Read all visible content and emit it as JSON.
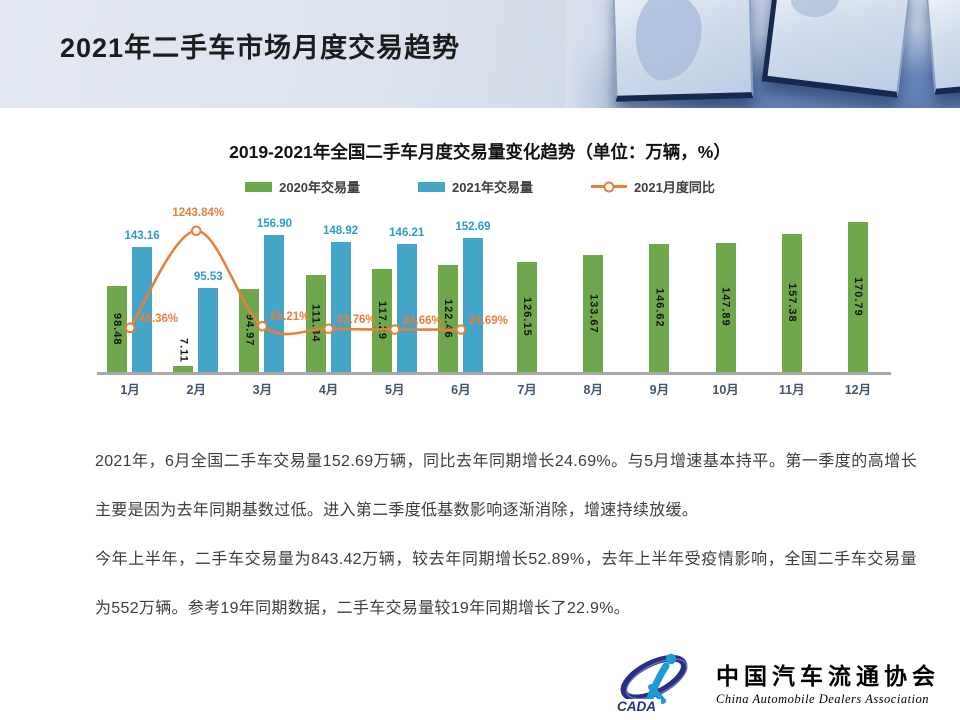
{
  "header": {
    "title": "2021年二手车市场月度交易趋势"
  },
  "chart": {
    "title": "2019-2021年全国二手车月度交易量变化趋势（单位：万辆，%）",
    "legend": [
      {
        "label": "2020年交易量",
        "color": "#6FA84C",
        "type": "bar"
      },
      {
        "label": "2021年交易量",
        "color": "#45A5C8",
        "type": "bar"
      },
      {
        "label": "2021月度同比",
        "color": "#E87F3A",
        "type": "line"
      }
    ]
  },
  "chart_data": {
    "type": "bar",
    "subtype": "grouped-bars-with-line",
    "title": "2019-2021年全国二手车月度交易量变化趋势（单位：万辆，%）",
    "categories": [
      "1月",
      "2月",
      "3月",
      "4月",
      "5月",
      "6月",
      "7月",
      "8月",
      "9月",
      "10月",
      "11月",
      "12月"
    ],
    "series": [
      {
        "name": "2020年交易量",
        "chart_type": "bar",
        "color": "#6FA84C",
        "label_color": "#141414",
        "values": [
          98.48,
          7.11,
          94.97,
          111.34,
          117.29,
          122.46,
          126.15,
          133.67,
          146.62,
          147.89,
          157.38,
          170.79
        ],
        "labels": [
          "98.48",
          "7.11",
          "94.97",
          "111.34",
          "117.29",
          "122.46",
          "126.15",
          "133.67",
          "146.62",
          "147.89",
          "157.38",
          "170.79"
        ]
      },
      {
        "name": "2021年交易量",
        "chart_type": "bar",
        "color": "#45A5C8",
        "label_color": "#2E9BC9",
        "values": [
          143.16,
          95.53,
          156.9,
          148.92,
          146.21,
          152.69,
          null,
          null,
          null,
          null,
          null,
          null
        ],
        "labels": [
          "143.16",
          "95.53",
          "156.90",
          "148.92",
          "146.21",
          "152.69"
        ]
      },
      {
        "name": "2021月度同比",
        "chart_type": "line",
        "color": "#E87F3A",
        "unit": "%",
        "values": [
          45.36,
          1243.84,
          65.21,
          33.76,
          24.66,
          24.69,
          null,
          null,
          null,
          null,
          null,
          null
        ],
        "labels": [
          "45.36%",
          "1243.84%",
          "65.21%",
          "33.76%",
          "24.66%",
          "24.69%"
        ]
      }
    ],
    "primary_axis": {
      "min": 0,
      "max": 185,
      "unit": "万辆",
      "ticks_visible": false
    },
    "secondary_axis": {
      "min": -500,
      "max": 1500,
      "unit": "%",
      "ticks_visible": false
    },
    "grid": false,
    "legend_position": "top"
  },
  "body": {
    "paragraph1": "2021年，6月全国二手车交易量152.69万辆，同比去年同期增长24.69%。与5月增速基本持平。第一季度的高增长主要是因为去年同期基数过低。进入第二季度低基数影响逐渐消除，增速持续放缓。",
    "paragraph2": "今年上半年，二手车交易量为843.42万辆，较去年同期增长52.89%，去年上半年受疫情影响，全国二手车交易量为552万辆。参考19年同期数据，二手车交易量较19年同期增长了22.9%。"
  },
  "footer_logo": {
    "acronym": "CADA",
    "cn": "中国汽车流通协会",
    "en": "China Automobile Dealers Association",
    "emblem_blue": "#1C9AD6",
    "emblem_navy": "#2B2E85"
  }
}
